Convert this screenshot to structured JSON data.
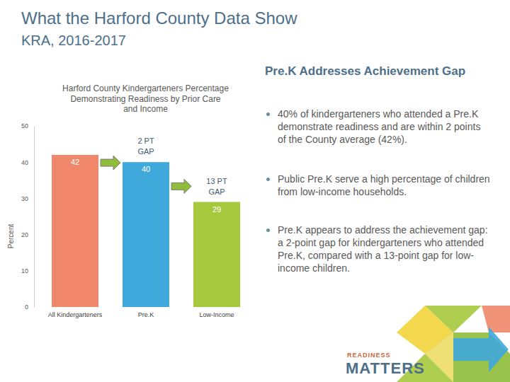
{
  "slide": {
    "title": "What the Harford County Data Show",
    "subtitle": "KRA, 2016-2017",
    "heading": "Pre.K Addresses Achievement Gap",
    "bullets": [
      "40% of kindergarteners who attended a Pre.K demonstrate readiness and are within 2 points of the County average (42%).",
      "Public Pre.K serve a high percentage of children from low-income households.",
      "Pre.K appears to address the achievement gap: a 2-point gap for kindergarteners who attended Pre.K, compared with a 13-point gap for low-income children."
    ],
    "logo": [
      "READINESS",
      "MATTERS"
    ]
  },
  "chart_data": {
    "type": "bar",
    "title": "Harford County Kindergarteners Percentage Demonstrating Readiness by Prior Care and Income",
    "ylabel": "Percent",
    "categories": [
      "All Kindergarteners",
      "Pre.K",
      "Low-Income"
    ],
    "values": [
      42,
      40,
      29
    ],
    "colors": [
      "#f0876a",
      "#3fa9dc",
      "#a6c83c"
    ],
    "ylim": [
      0,
      50
    ],
    "yticks": [
      0,
      10,
      20,
      30,
      40,
      50
    ],
    "grid": false,
    "data_labels": true,
    "annotations": [
      "2 PT GAP",
      "13 PT GAP"
    ]
  }
}
